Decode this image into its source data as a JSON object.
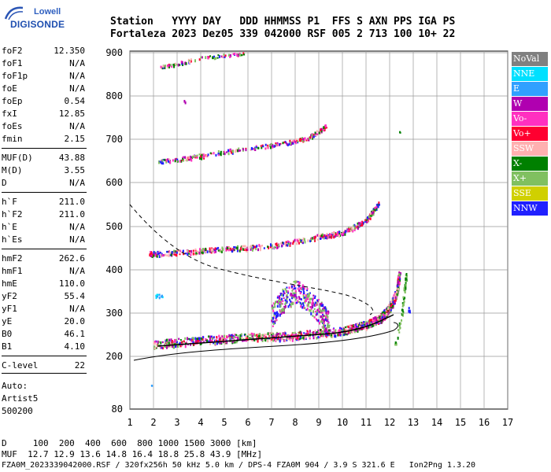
{
  "logo": {
    "line1": "Lowell",
    "line2": "DIGISONDE"
  },
  "header": {
    "labels": "Station   YYYY DAY   DDD HHMMSS P1  FFS S AXN PPS IGA PS",
    "values": "Fortaleza 2023 Dez05 339 042000 RSF 005 2 713 100 10+ 22"
  },
  "params": [
    {
      "k": "foF2",
      "v": "12.350"
    },
    {
      "k": "foF1",
      "v": "N/A"
    },
    {
      "k": "foF1p",
      "v": "N/A"
    },
    {
      "k": "foE",
      "v": "N/A"
    },
    {
      "k": "foEp",
      "v": "0.54"
    },
    {
      "k": "fxI",
      "v": "12.85"
    },
    {
      "k": "foEs",
      "v": "N/A"
    },
    {
      "k": "fmin",
      "v": "2.15"
    },
    {
      "k": "MUF(D)",
      "v": "43.88"
    },
    {
      "k": "M(D)",
      "v": "3.55"
    },
    {
      "k": "D",
      "v": "N/A"
    },
    {
      "k": "h`F",
      "v": "211.0"
    },
    {
      "k": "h`F2",
      "v": "211.0"
    },
    {
      "k": "h`E",
      "v": "N/A"
    },
    {
      "k": "h`Es",
      "v": "N/A"
    },
    {
      "k": "hmF2",
      "v": "262.6"
    },
    {
      "k": "hmF1",
      "v": "N/A"
    },
    {
      "k": "hmE",
      "v": "110.0"
    },
    {
      "k": "yF2",
      "v": "55.4"
    },
    {
      "k": "yF1",
      "v": "N/A"
    },
    {
      "k": "yE",
      "v": "20.0"
    },
    {
      "k": "B0",
      "v": "46.1"
    },
    {
      "k": "B1",
      "v": "4.10"
    },
    {
      "k": "C-level",
      "v": "22"
    }
  ],
  "auto": [
    "Auto:",
    "Artist5",
    "500200"
  ],
  "legend": [
    {
      "label": "NoVal",
      "color": "#808080"
    },
    {
      "label": "NNE",
      "color": "#00e0ff"
    },
    {
      "label": "E",
      "color": "#30a0ff"
    },
    {
      "label": "W",
      "color": "#b000b0"
    },
    {
      "label": "Vo-",
      "color": "#ff30c0"
    },
    {
      "label": "Vo+",
      "color": "#ff0030"
    },
    {
      "label": "SSW",
      "color": "#ffb0b0"
    },
    {
      "label": "X-",
      "color": "#008000"
    },
    {
      "label": "X+",
      "color": "#80c060"
    },
    {
      "label": "SSE",
      "color": "#d0d000"
    },
    {
      "label": "NNW",
      "color": "#2020ff"
    }
  ],
  "axes": {
    "x_ticks": [
      "1",
      "2",
      "3",
      "4",
      "5",
      "6",
      "7",
      "8",
      "9",
      "10",
      "11",
      "12",
      "13",
      "14",
      "15",
      "16",
      "17"
    ],
    "y_ticks": [
      "900",
      "800",
      "700",
      "600",
      "500",
      "400",
      "300",
      "200",
      "80"
    ]
  },
  "bottom": {
    "line1": "D     100  200  400  600  800 1000 1500 3000 [km]",
    "line2": "MUF  12.7 12.9 13.6 14.8 16.4 18.8 25.8 43.9 [MHz]"
  },
  "footer": "FZA0M_2023339042000.RSF / 320fx256h 50 kHz 5.0 km / DPS-4 FZA0M 904 / 3.9 S 321.6 E   Ion2Png 1.3.20"
}
